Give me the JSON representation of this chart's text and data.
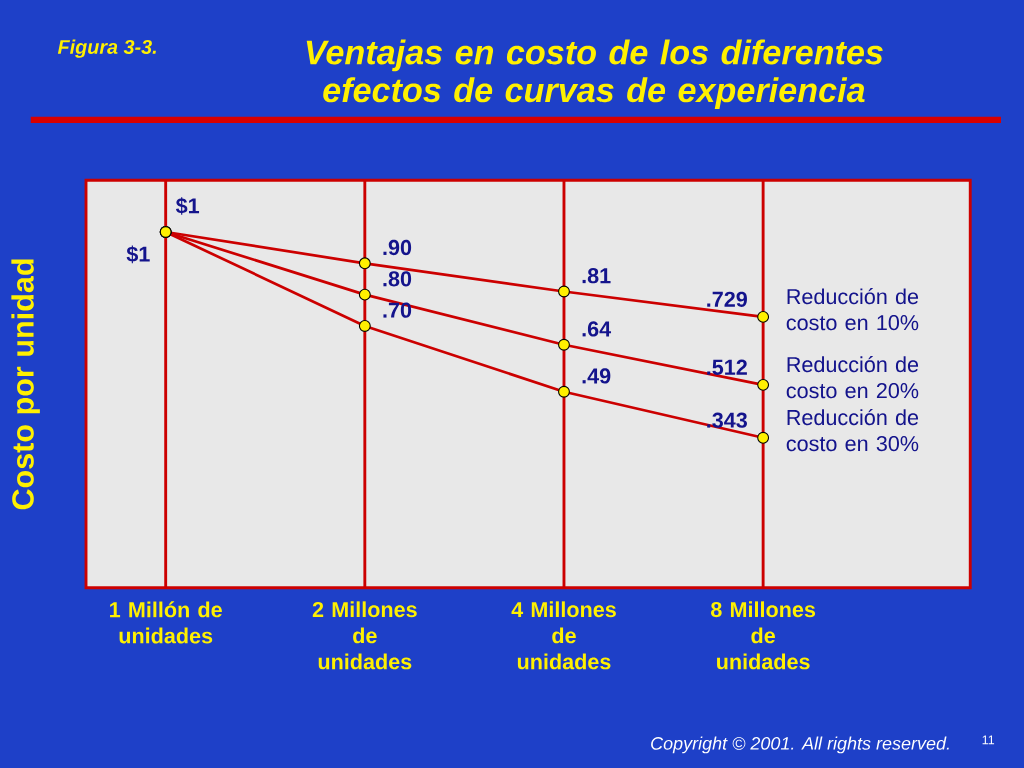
{
  "chart_data": {
    "type": "line",
    "subtitle": "Figura 3-3.",
    "title": "Ventajas en costo de los diferentes efectos de curvas de experiencia",
    "ylabel": "Costo por unidad",
    "categories": [
      "1 Millón de unidades",
      "2 Millones de unidades",
      "4 Millones de unidades",
      "8 Millones de unidades"
    ],
    "series": [
      {
        "name": "Reducción de costo en 10%",
        "color": "#cc0000",
        "values": [
          1,
          0.9,
          0.81,
          0.729
        ],
        "value_labels": [
          "$1",
          ".90",
          ".81",
          ".729"
        ]
      },
      {
        "name": "Reducción de costo en 20%",
        "color": "#cc0000",
        "values": [
          1,
          0.8,
          0.64,
          0.512
        ],
        "value_labels": [
          "$1",
          ".80",
          ".64",
          ".512"
        ]
      },
      {
        "name": "Reducción de costo en 30%",
        "color": "#cc0000",
        "values": [
          1,
          0.7,
          0.49,
          0.343
        ],
        "value_labels": [
          null,
          ".70",
          ".49",
          ".343"
        ]
      }
    ],
    "marker": "circle",
    "grid": "x",
    "tick_labels": "x",
    "annotations": [
      "Copyright © 2001. All rights reserved.",
      "11"
    ]
  }
}
